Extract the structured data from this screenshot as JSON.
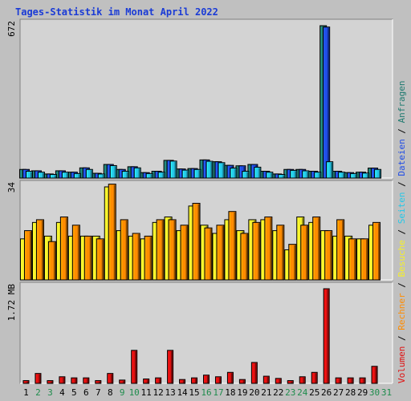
{
  "chart_data": {
    "type": "bar",
    "title": "Tages-Statistik im Monat April 2022",
    "categories": [
      "1",
      "2",
      "3",
      "4",
      "5",
      "6",
      "7",
      "8",
      "9",
      "10",
      "11",
      "12",
      "13",
      "14",
      "15",
      "16",
      "17",
      "18",
      "19",
      "20",
      "21",
      "22",
      "23",
      "24",
      "25",
      "26",
      "27",
      "28",
      "29",
      "30",
      "31"
    ],
    "weekend_days": [
      "2",
      "3",
      "9",
      "10",
      "16",
      "17",
      "23",
      "24",
      "30",
      "31"
    ],
    "colors": {
      "title": "#1a3bd6",
      "weekday_label": "#000000",
      "weekend_label": "#1e8c4c",
      "background": "#c0c0c0",
      "plot_background": "#d3d3d3",
      "anfragen": "#1f7a70",
      "dateien": "#1f4de6",
      "seiten": "#24c8e8",
      "besuche": "#f5f02a",
      "rechner": "#ff8c00",
      "volumen": "#e01010"
    },
    "panels": [
      {
        "name": "requests",
        "max_label": "672",
        "ylim": [
          0,
          672
        ],
        "series": [
          {
            "name": "Anfragen",
            "color_key": "anfragen",
            "values": [
              38,
              32,
              18,
              32,
              26,
              45,
              21,
              60,
              38,
              50,
              24,
              30,
              78,
              40,
              42,
              80,
              72,
              56,
              54,
              60,
              30,
              18,
              38,
              38,
              30,
              672,
              30,
              24,
              26,
              44,
              0
            ]
          },
          {
            "name": "Dateien",
            "color_key": "dateien",
            "values": [
              38,
              32,
              18,
              32,
              26,
              45,
              21,
              60,
              38,
              50,
              24,
              30,
              78,
              40,
              42,
              80,
              72,
              56,
              54,
              60,
              30,
              18,
              38,
              38,
              30,
              666,
              30,
              24,
              26,
              44,
              0
            ]
          },
          {
            "name": "Seiten",
            "color_key": "seiten",
            "values": [
              30,
              26,
              16,
              26,
              20,
              38,
              18,
              55,
              30,
              45,
              20,
              26,
              75,
              35,
              38,
              74,
              68,
              44,
              30,
              48,
              26,
              16,
              34,
              32,
              26,
              72,
              26,
              20,
              22,
              38,
              0
            ]
          }
        ]
      },
      {
        "name": "visits",
        "max_label": "34",
        "ylim": [
          0,
          34
        ],
        "series": [
          {
            "name": "Besuche",
            "color_key": "besuche",
            "values": [
              15,
              21,
              16,
              21,
              16,
              16,
              16,
              34,
              18,
              16,
              15,
              21,
              23,
              18,
              27,
              20,
              17,
              22,
              18,
              22,
              22,
              18,
              11,
              23,
              21,
              18,
              16,
              16,
              15,
              20,
              0
            ]
          },
          {
            "name": "Rechner",
            "color_key": "rechner",
            "values": [
              18,
              22,
              14,
              23,
              20,
              16,
              15,
              35,
              22,
              17,
              16,
              22,
              22,
              20,
              28,
              19,
              20,
              25,
              17,
              21,
              23,
              20,
              13,
              20,
              23,
              18,
              22,
              15,
              15,
              21,
              0
            ]
          }
        ]
      },
      {
        "name": "volume",
        "max_label": "1.72 MB",
        "ylim": [
          0,
          1.72
        ],
        "series": [
          {
            "name": "Volumen",
            "color_key": "volumen",
            "values": [
              0.05,
              0.18,
              0.05,
              0.12,
              0.1,
              0.1,
              0.05,
              0.18,
              0.06,
              0.6,
              0.08,
              0.1,
              0.6,
              0.07,
              0.1,
              0.15,
              0.12,
              0.2,
              0.07,
              0.38,
              0.13,
              0.09,
              0.05,
              0.12,
              0.2,
              1.72,
              0.1,
              0.1,
              0.1,
              0.31,
              0
            ]
          }
        ]
      }
    ],
    "legend": {
      "placement": "right",
      "entries": [
        {
          "label": "Anfragen",
          "color_key": "anfragen"
        },
        {
          "label": "Dateien",
          "color_key": "dateien"
        },
        {
          "label": "Seiten",
          "color_key": "seiten"
        },
        {
          "label": "Besuche",
          "color_key": "besuche"
        },
        {
          "label": "Rechner",
          "color_key": "rechner"
        },
        {
          "label": "Volumen",
          "color_key": "volumen"
        }
      ],
      "separator": " / "
    },
    "grid": true
  }
}
